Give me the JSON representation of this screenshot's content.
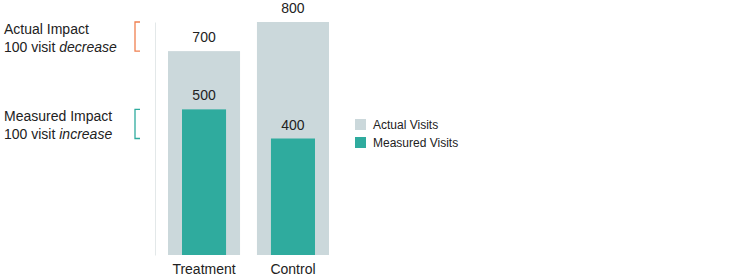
{
  "chart_data": {
    "type": "bar",
    "categories": [
      "Treatment",
      "Control"
    ],
    "series": [
      {
        "name": "Actual Visits",
        "color": "#cbd8db",
        "values": [
          700,
          800
        ]
      },
      {
        "name": "Measured Visits",
        "color": "#2fab9e",
        "values": [
          500,
          400
        ]
      }
    ],
    "ylim": [
      0,
      800
    ],
    "tick_labels": "x",
    "data_labels": true,
    "legend": "right",
    "annotations": [
      {
        "lines": [
          "Actual Impact",
          "100 visit decrease"
        ],
        "italic": "decrease",
        "color": "#f08050"
      },
      {
        "lines": [
          "Measured Impact",
          "100 visit increase"
        ],
        "italic": "increase",
        "color": "#2fab9e"
      }
    ]
  }
}
